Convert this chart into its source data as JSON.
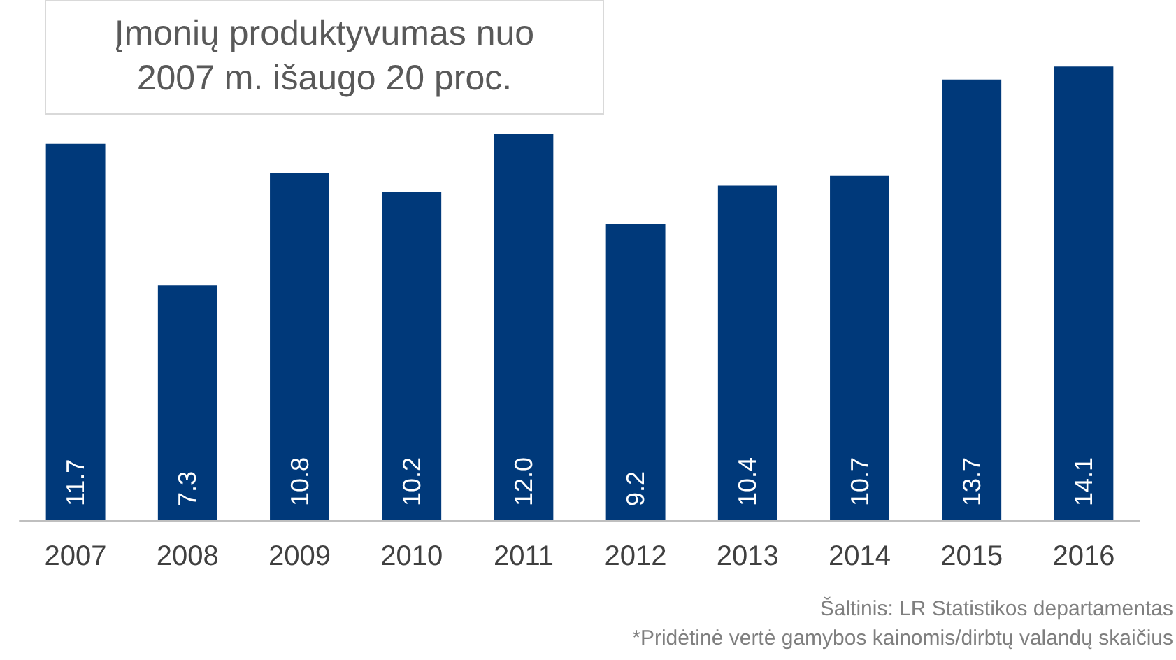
{
  "chart_data": {
    "type": "bar",
    "title": "Įmonių produktyvumas nuo 2007 m. išaugo 20 proc.",
    "categories": [
      "2007",
      "2008",
      "2009",
      "2010",
      "2011",
      "2012",
      "2013",
      "2014",
      "2015",
      "2016"
    ],
    "values": [
      11.7,
      7.3,
      10.8,
      10.2,
      12.0,
      9.2,
      10.4,
      10.7,
      13.7,
      14.1
    ],
    "value_labels": [
      "11.7",
      "7.3",
      "10.8",
      "10.2",
      "12.0",
      "9.2",
      "10.4",
      "10.7",
      "13.7",
      "14.1"
    ],
    "color": "#00397a",
    "annotations": [
      "Šaltinis: LR Statistikos departamentas",
      "*Pridėtinė vertė gamybos kainomis/dirbtų valandų skaičius"
    ]
  }
}
